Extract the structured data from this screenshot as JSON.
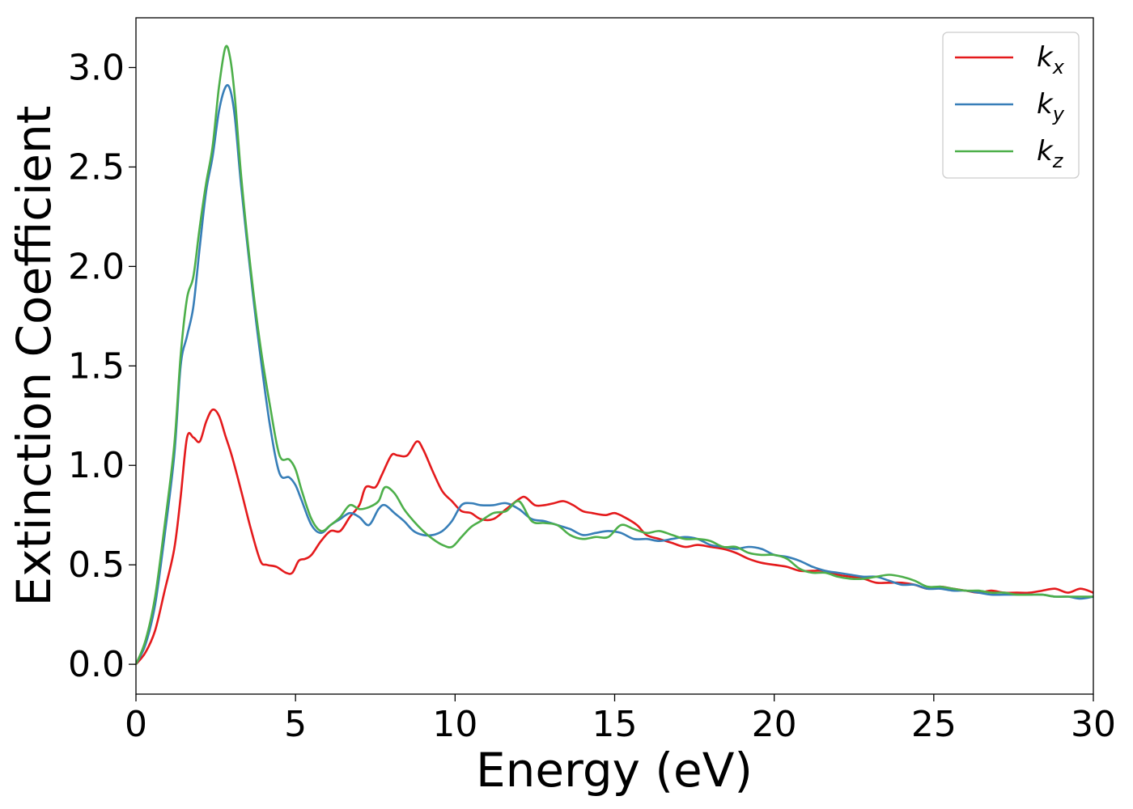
{
  "chart_data": {
    "type": "line",
    "xlabel": "Energy (eV)",
    "ylabel": "Extinction Coefficient",
    "xlim": [
      0,
      30
    ],
    "ylim": [
      -0.15,
      3.25
    ],
    "xticks": [
      "0",
      "5",
      "10",
      "15",
      "20",
      "25",
      "30"
    ],
    "yticks": [
      "0.0",
      "0.5",
      "1.0",
      "1.5",
      "2.0",
      "2.5",
      "3.0"
    ],
    "grid": false,
    "legend_position": "top-right",
    "series": [
      {
        "name": "k_x",
        "label_base": "k",
        "label_sub": "x",
        "color": "#e41a1c",
        "x": [
          0,
          0.3,
          0.6,
          0.9,
          1.2,
          1.4,
          1.6,
          1.8,
          2.0,
          2.2,
          2.4,
          2.6,
          2.8,
          3.0,
          3.3,
          3.6,
          3.9,
          4.1,
          4.4,
          4.7,
          4.9,
          5.1,
          5.3,
          5.5,
          5.8,
          6.1,
          6.4,
          6.7,
          7.0,
          7.2,
          7.5,
          7.7,
          8.0,
          8.2,
          8.5,
          8.8,
          9.0,
          9.3,
          9.6,
          9.9,
          10.2,
          10.5,
          10.8,
          11.2,
          11.6,
          12.0,
          12.2,
          12.5,
          12.8,
          13.1,
          13.4,
          13.7,
          14.0,
          14.3,
          14.7,
          15.0,
          15.3,
          15.7,
          16.0,
          16.4,
          16.8,
          17.2,
          17.6,
          18.0,
          18.4,
          18.8,
          19.2,
          19.6,
          20.0,
          20.4,
          20.8,
          21.2,
          21.6,
          22.0,
          22.4,
          22.8,
          23.2,
          23.6,
          24.0,
          24.4,
          24.8,
          25.2,
          25.6,
          26.0,
          26.4,
          26.8,
          27.2,
          27.6,
          28.0,
          28.4,
          28.8,
          29.2,
          29.6,
          30.0
        ],
        "y": [
          0.0,
          0.06,
          0.17,
          0.37,
          0.58,
          0.84,
          1.14,
          1.14,
          1.12,
          1.22,
          1.28,
          1.25,
          1.15,
          1.05,
          0.87,
          0.68,
          0.52,
          0.5,
          0.49,
          0.46,
          0.46,
          0.52,
          0.53,
          0.55,
          0.62,
          0.67,
          0.67,
          0.74,
          0.8,
          0.89,
          0.89,
          0.95,
          1.05,
          1.05,
          1.05,
          1.12,
          1.08,
          0.97,
          0.87,
          0.82,
          0.77,
          0.76,
          0.73,
          0.73,
          0.78,
          0.83,
          0.84,
          0.8,
          0.8,
          0.81,
          0.82,
          0.8,
          0.77,
          0.76,
          0.75,
          0.76,
          0.74,
          0.7,
          0.65,
          0.63,
          0.61,
          0.59,
          0.6,
          0.59,
          0.58,
          0.56,
          0.53,
          0.51,
          0.5,
          0.49,
          0.47,
          0.47,
          0.47,
          0.45,
          0.44,
          0.43,
          0.41,
          0.41,
          0.41,
          0.4,
          0.38,
          0.39,
          0.38,
          0.37,
          0.36,
          0.37,
          0.36,
          0.36,
          0.36,
          0.37,
          0.38,
          0.36,
          0.38,
          0.36
        ]
      },
      {
        "name": "k_y",
        "label_base": "k",
        "label_sub": "y",
        "color": "#377eb8",
        "x": [
          0,
          0.3,
          0.6,
          0.9,
          1.2,
          1.4,
          1.6,
          1.8,
          2.0,
          2.2,
          2.4,
          2.6,
          2.8,
          2.95,
          3.1,
          3.3,
          3.6,
          3.9,
          4.2,
          4.5,
          4.8,
          5.0,
          5.2,
          5.5,
          5.8,
          6.1,
          6.4,
          6.7,
          7.0,
          7.3,
          7.6,
          7.8,
          8.1,
          8.4,
          8.7,
          9.0,
          9.3,
          9.6,
          9.9,
          10.2,
          10.5,
          10.8,
          11.2,
          11.6,
          12.0,
          12.4,
          12.8,
          13.2,
          13.6,
          14.0,
          14.4,
          14.8,
          15.2,
          15.6,
          16.0,
          16.4,
          16.8,
          17.2,
          17.6,
          18.0,
          18.4,
          18.8,
          19.2,
          19.6,
          20.0,
          20.4,
          20.8,
          21.2,
          21.6,
          22.0,
          22.4,
          22.8,
          23.2,
          23.6,
          24.0,
          24.4,
          24.8,
          25.2,
          25.6,
          26.0,
          26.4,
          26.8,
          27.2,
          27.6,
          28.0,
          28.4,
          28.8,
          29.2,
          29.6,
          30.0
        ],
        "y": [
          0.0,
          0.1,
          0.3,
          0.65,
          1.05,
          1.5,
          1.65,
          1.8,
          2.1,
          2.38,
          2.55,
          2.78,
          2.9,
          2.89,
          2.75,
          2.4,
          1.95,
          1.55,
          1.2,
          0.96,
          0.94,
          0.9,
          0.82,
          0.7,
          0.66,
          0.7,
          0.73,
          0.76,
          0.74,
          0.7,
          0.78,
          0.8,
          0.76,
          0.72,
          0.67,
          0.65,
          0.65,
          0.67,
          0.72,
          0.8,
          0.81,
          0.8,
          0.8,
          0.81,
          0.78,
          0.73,
          0.72,
          0.7,
          0.68,
          0.65,
          0.66,
          0.67,
          0.66,
          0.63,
          0.63,
          0.62,
          0.63,
          0.64,
          0.63,
          0.6,
          0.59,
          0.58,
          0.59,
          0.58,
          0.55,
          0.54,
          0.52,
          0.49,
          0.47,
          0.46,
          0.45,
          0.44,
          0.44,
          0.42,
          0.4,
          0.4,
          0.38,
          0.38,
          0.37,
          0.37,
          0.36,
          0.35,
          0.35,
          0.35,
          0.35,
          0.35,
          0.34,
          0.34,
          0.33,
          0.34
        ]
      },
      {
        "name": "k_z",
        "label_base": "k",
        "label_sub": "z",
        "color": "#4daf4a",
        "x": [
          0,
          0.3,
          0.6,
          0.9,
          1.2,
          1.4,
          1.6,
          1.8,
          2.0,
          2.2,
          2.4,
          2.6,
          2.8,
          2.95,
          3.1,
          3.3,
          3.6,
          3.9,
          4.2,
          4.5,
          4.8,
          5.0,
          5.2,
          5.5,
          5.8,
          6.1,
          6.4,
          6.7,
          7.0,
          7.3,
          7.6,
          7.8,
          8.1,
          8.4,
          8.7,
          9.0,
          9.3,
          9.6,
          9.9,
          10.2,
          10.5,
          10.8,
          11.2,
          11.6,
          12.0,
          12.4,
          12.8,
          13.2,
          13.6,
          14.0,
          14.4,
          14.8,
          15.2,
          15.6,
          16.0,
          16.4,
          16.8,
          17.2,
          17.6,
          18.0,
          18.4,
          18.8,
          19.2,
          19.6,
          20.0,
          20.4,
          20.8,
          21.2,
          21.6,
          22.0,
          22.4,
          22.8,
          23.2,
          23.6,
          24.0,
          24.4,
          24.8,
          25.2,
          25.6,
          26.0,
          26.4,
          26.8,
          27.2,
          27.6,
          28.0,
          28.4,
          28.8,
          29.2,
          29.6,
          30.0
        ],
        "y": [
          0.0,
          0.12,
          0.34,
          0.7,
          1.1,
          1.55,
          1.84,
          1.95,
          2.2,
          2.42,
          2.6,
          2.9,
          3.1,
          3.05,
          2.85,
          2.45,
          1.98,
          1.6,
          1.3,
          1.05,
          1.03,
          0.98,
          0.87,
          0.73,
          0.67,
          0.7,
          0.74,
          0.8,
          0.78,
          0.79,
          0.82,
          0.89,
          0.86,
          0.78,
          0.72,
          0.67,
          0.63,
          0.6,
          0.59,
          0.64,
          0.69,
          0.72,
          0.76,
          0.77,
          0.82,
          0.72,
          0.71,
          0.7,
          0.65,
          0.63,
          0.64,
          0.64,
          0.7,
          0.68,
          0.66,
          0.67,
          0.65,
          0.63,
          0.63,
          0.62,
          0.59,
          0.59,
          0.56,
          0.55,
          0.55,
          0.53,
          0.48,
          0.46,
          0.46,
          0.44,
          0.43,
          0.43,
          0.44,
          0.45,
          0.44,
          0.42,
          0.39,
          0.39,
          0.38,
          0.37,
          0.37,
          0.36,
          0.36,
          0.35,
          0.35,
          0.35,
          0.34,
          0.34,
          0.34,
          0.34
        ]
      }
    ]
  }
}
